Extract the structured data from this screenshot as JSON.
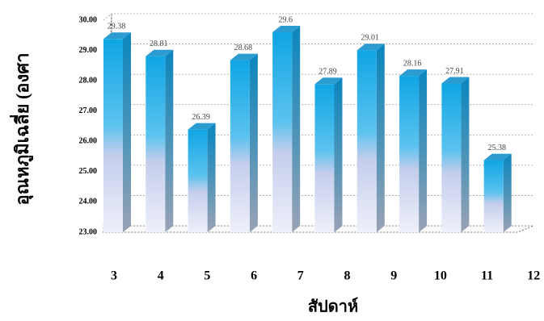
{
  "chart_data": {
    "type": "bar3d",
    "y_label": "อุณหภูมิเฉลี่ย (องศา",
    "x_label": "สัปดาห์",
    "categories": [
      "3",
      "4",
      "5",
      "6",
      "7",
      "8",
      "9",
      "10",
      "11",
      "12"
    ],
    "values": [
      29.38,
      28.81,
      26.39,
      28.68,
      29.6,
      27.89,
      29.01,
      28.16,
      27.91,
      25.38
    ],
    "ylim": [
      23,
      30
    ],
    "yticks": [
      {
        "value": 23,
        "label": "23.00"
      },
      {
        "value": 24,
        "label": "24.00"
      },
      {
        "value": 25,
        "label": "25.00"
      },
      {
        "value": 26,
        "label": "26.00"
      },
      {
        "value": 27,
        "label": "27.00"
      },
      {
        "value": 28,
        "label": "28.00"
      },
      {
        "value": 29,
        "label": "29.00"
      },
      {
        "value": 30,
        "label": "30.00"
      }
    ],
    "color": "#12a9e6",
    "grid": true
  }
}
